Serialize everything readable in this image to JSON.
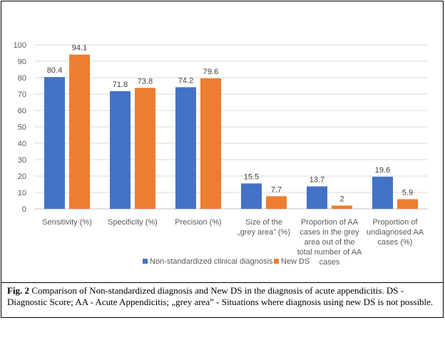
{
  "figure": {
    "caption_label": "Fig. 2",
    "caption_text": " Comparison of Non-standardized diagnosis and New DS in the diagnosis of acute appendicitis. DS - Diagnostic Score; AA - Acute Appendicitis; „grey area” - Situations where diagnosis using new DS is not possible."
  },
  "chart_data": {
    "type": "bar",
    "categories": [
      [
        "Sensitivity (%)"
      ],
      [
        "Specificity (%)"
      ],
      [
        "Precision (%)"
      ],
      [
        "Size of the",
        "„grey area” (%)"
      ],
      [
        "Proportion of AA",
        "cases in the grey",
        "area out of the",
        "total number of AA",
        "cases"
      ],
      [
        "Proportion of",
        "undiagnosed AA",
        "cases (%)"
      ]
    ],
    "series": [
      {
        "name": "Non-standardized clinical diagnosis",
        "color": "#4472C4",
        "values": [
          80.4,
          71.8,
          74.2,
          15.5,
          13.7,
          19.6
        ]
      },
      {
        "name": "New DS",
        "color": "#ED7D31",
        "values": [
          94.1,
          73.8,
          79.6,
          7.7,
          2,
          5.9
        ]
      }
    ],
    "ylim": [
      0,
      100
    ],
    "yticks": [
      0,
      10,
      20,
      30,
      40,
      50,
      60,
      70,
      80,
      90,
      100
    ],
    "grid": true,
    "legend_position": "bottom"
  }
}
